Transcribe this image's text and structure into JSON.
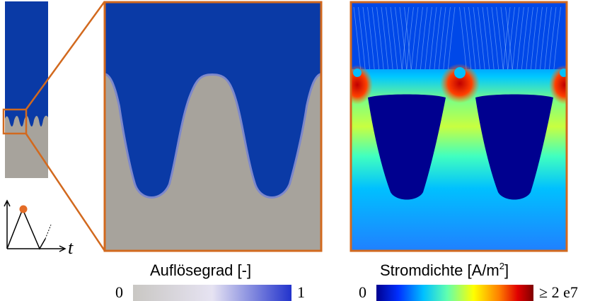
{
  "time_axis": {
    "label": "t"
  },
  "colorbar_left": {
    "title": "Auflösegrad [-]",
    "min": "0",
    "max": "1",
    "colors": [
      "#c9c7c3",
      "#e6e3f2",
      "#2233cc"
    ]
  },
  "colorbar_right": {
    "title_main": "Stromdichte [A/m",
    "title_sup": "2",
    "title_end": "]",
    "min": "0",
    "max": "≥ 2 e7",
    "colors": [
      "#00008f",
      "#0030ff",
      "#00c0ff",
      "#60ffb0",
      "#ffff00",
      "#ff8000",
      "#e00000",
      "#7f0000"
    ]
  },
  "colors": {
    "frame": "#d2691e",
    "solid": "#a7a39c",
    "electrolyte": "#0a3aa6",
    "marker": "#e46c26"
  }
}
